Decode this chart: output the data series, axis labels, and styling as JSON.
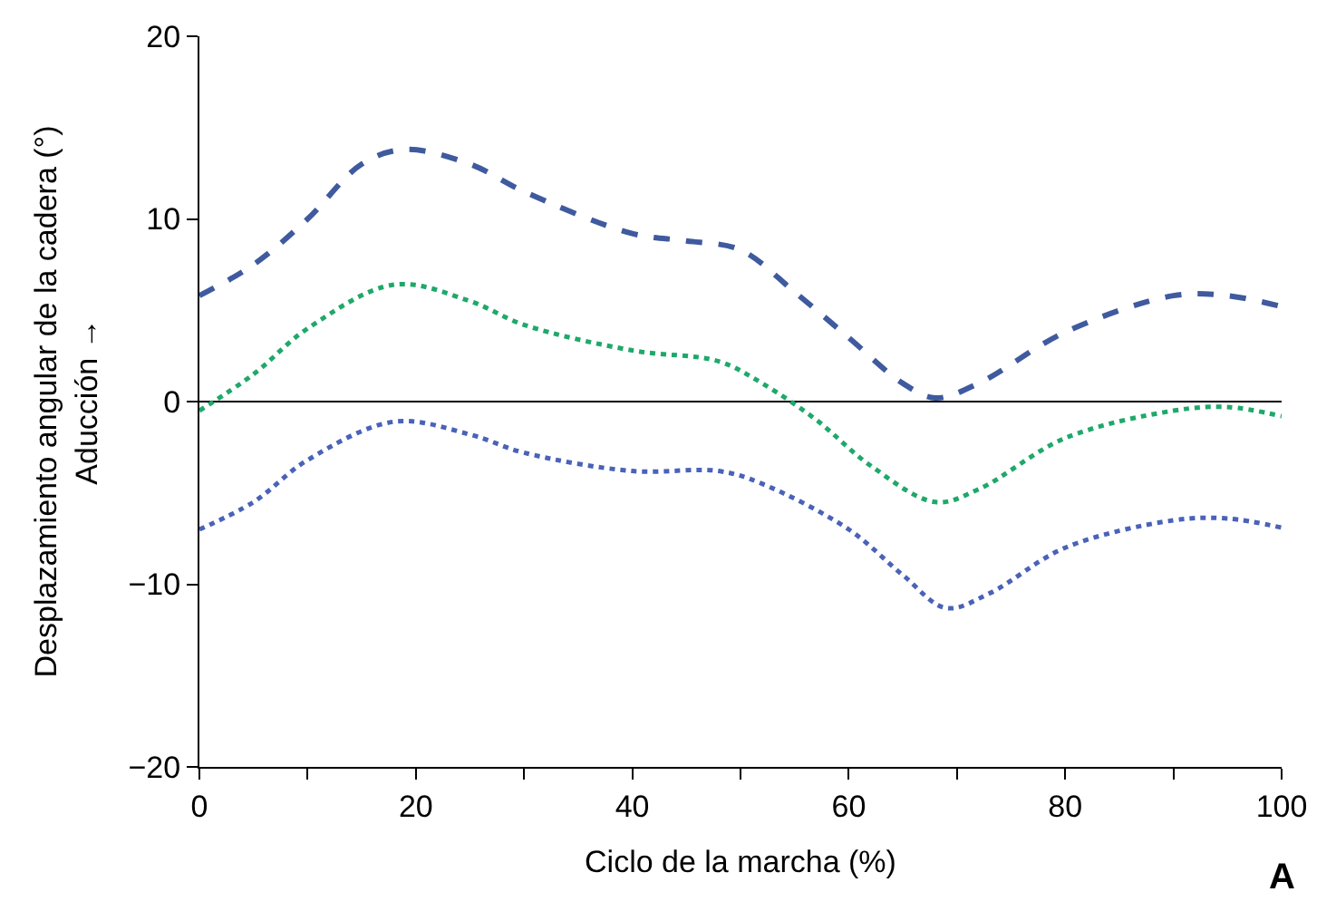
{
  "chart_data": {
    "type": "line",
    "xlabel": "Ciclo de la marcha (%)",
    "ylabel": "Desplazamiento angular de la cadera (°)\nAducción →",
    "xlim": [
      0,
      100
    ],
    "ylim": [
      -20,
      20
    ],
    "xticks": [
      0,
      {
        "value": 10,
        "label": null
      },
      20,
      {
        "value": 30,
        "label": null
      },
      40,
      {
        "value": 50,
        "label": null
      },
      60,
      {
        "value": 70,
        "label": null
      },
      80,
      {
        "value": 90,
        "label": null
      },
      100
    ],
    "yticks": [
      -20,
      -10,
      0,
      10,
      20
    ],
    "grid": false,
    "marker": "none",
    "series": [
      {
        "color": "#3f5a9e",
        "line_style": "dashed",
        "x": [
          0,
          5,
          10,
          15,
          19,
          25,
          30,
          40,
          45,
          50,
          55,
          60,
          65,
          68,
          72,
          80,
          90,
          95,
          100
        ],
        "values": [
          5.8,
          7.5,
          10,
          13,
          13.8,
          13,
          11.5,
          9.2,
          8.8,
          8.3,
          6,
          3.5,
          1,
          0.2,
          1,
          3.8,
          5.8,
          5.8,
          5.2
        ]
      },
      {
        "color": "#1fa86a",
        "line_style": "dotted",
        "x": [
          0,
          5,
          10,
          18,
          25,
          30,
          40,
          48,
          52,
          57,
          62,
          68,
          72,
          80,
          90,
          95,
          100
        ],
        "values": [
          -0.5,
          1.5,
          4,
          6.4,
          5.5,
          4.2,
          2.8,
          2.2,
          1,
          -1,
          -3.5,
          -5.5,
          -4.8,
          -2,
          -0.5,
          -0.3,
          -0.8
        ]
      },
      {
        "color": "#4a62b8",
        "line_style": "dotted",
        "x": [
          0,
          5,
          10,
          18,
          25,
          30,
          40,
          48,
          52,
          60,
          65,
          69,
          73,
          80,
          90,
          95,
          100
        ],
        "values": [
          -7,
          -5.5,
          -3.2,
          -1.1,
          -1.8,
          -2.8,
          -3.8,
          -3.8,
          -4.5,
          -7,
          -9.5,
          -11.3,
          -10.5,
          -8,
          -6.5,
          -6.4,
          -6.9
        ]
      }
    ],
    "ref_lines": [
      {
        "axis": "y",
        "value": 0,
        "color": "#000000"
      }
    ],
    "annotations": [
      "A"
    ]
  }
}
